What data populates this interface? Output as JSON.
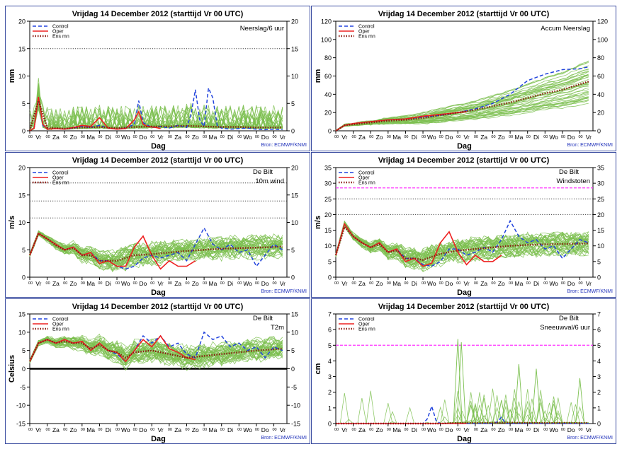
{
  "colors": {
    "ensemble": "#7cc050",
    "control": "#2244dd",
    "oper": "#ee2020",
    "ensmean": "#8b1a10",
    "threshold_dotted": "#444444",
    "threshold_magenta": "#ff33ff",
    "source_text": "#2233bb",
    "border": "#3a4ca0"
  },
  "common": {
    "day_labels": [
      "Vr",
      "Za",
      "Zo",
      "Ma",
      "Di",
      "Wo",
      "Do",
      "Vr",
      "Za",
      "Zo",
      "Ma",
      "Di",
      "Wo",
      "Do",
      "Vr"
    ],
    "xlabel": "Dag",
    "source": "Bron: ECMWF/KNMI",
    "legend": [
      "Control",
      "Oper",
      "Ens mn"
    ]
  },
  "chart_data": [
    {
      "id": "neerslag",
      "type": "line",
      "title": "Vrijdag  14 December 2012  (starttijd  Vr 00 UTC)",
      "station": "",
      "variable": "Neerslag/6 uur",
      "ylabel": "mm",
      "ylim": [
        0,
        20
      ],
      "yticks": [
        0,
        5,
        10,
        15,
        20
      ],
      "hlines": [
        {
          "y": 15,
          "style": "dotted"
        }
      ],
      "series": [
        {
          "name": "Control",
          "x": [
            0,
            0.25,
            0.5,
            0.75,
            1,
            1.5,
            2,
            2.5,
            3,
            3.5,
            4,
            4.5,
            5,
            5.5,
            6,
            6.25,
            6.5,
            7,
            7.5,
            8,
            8.5,
            9,
            9.25,
            9.5,
            9.75,
            10,
            10.25,
            10.5,
            10.75,
            11,
            11.5,
            12,
            12.5,
            13,
            13.5,
            14,
            14.5
          ],
          "values": [
            0,
            0.5,
            6,
            1,
            0.3,
            0.4,
            0.3,
            0.5,
            0.8,
            0.6,
            1,
            0.5,
            0.3,
            0.5,
            1.2,
            5.5,
            1.5,
            0.6,
            0.8,
            0.5,
            1,
            0.6,
            3,
            7.5,
            2,
            0.8,
            7.8,
            6,
            1,
            0.5,
            0.3,
            0.4,
            0.5,
            0.3,
            0.2,
            0.3,
            0.2
          ]
        },
        {
          "name": "Oper",
          "x": [
            0,
            0.25,
            0.5,
            0.75,
            1,
            1.5,
            2,
            2.5,
            3,
            3.5,
            4,
            4.5,
            5,
            5.5,
            6,
            6.25,
            6.5,
            6.75,
            7,
            7.25,
            7.5
          ],
          "values": [
            0,
            0.5,
            6.2,
            1.2,
            0.3,
            0.4,
            0.3,
            0.6,
            1,
            0.8,
            2.4,
            0.5,
            0.3,
            0.4,
            2,
            3.5,
            1.2,
            0.8,
            0.7,
            0.6,
            0.4
          ]
        },
        {
          "name": "Ens mn",
          "x": [
            0,
            0.5,
            1,
            2,
            3,
            4,
            5,
            6,
            7,
            8,
            9,
            10,
            11,
            12,
            13,
            14,
            14.5
          ],
          "values": [
            0,
            5.5,
            0.6,
            0.4,
            0.6,
            0.7,
            0.5,
            0.7,
            0.8,
            0.8,
            0.9,
            0.8,
            0.7,
            0.7,
            0.6,
            0.6,
            0.6
          ]
        }
      ]
    },
    {
      "id": "accum",
      "type": "line",
      "title": "Vrijdag  14 December 2012  (starttijd  Vr 00 UTC)",
      "station": "",
      "variable": "Accum Neerslag",
      "ylabel": "mm",
      "ylim": [
        0,
        120
      ],
      "yticks": [
        0,
        20,
        40,
        60,
        80,
        100,
        120
      ],
      "hlines": [],
      "series": [
        {
          "name": "Control",
          "x": [
            0,
            0.5,
            1,
            2,
            3,
            4,
            5,
            6,
            7,
            8,
            9,
            10,
            11,
            12,
            13,
            14,
            14.5
          ],
          "values": [
            0,
            6,
            8,
            10,
            12,
            13,
            15,
            17,
            20,
            24,
            30,
            40,
            55,
            62,
            67,
            68,
            70
          ]
        },
        {
          "name": "Oper",
          "x": [
            0,
            0.5,
            1,
            2,
            3,
            4,
            5,
            6,
            7,
            7.5
          ],
          "values": [
            0,
            6,
            8,
            10,
            12,
            13,
            16,
            18,
            20,
            21
          ]
        },
        {
          "name": "Ens mn",
          "x": [
            0,
            0.5,
            1,
            2,
            3,
            4,
            5,
            6,
            7,
            8,
            9,
            10,
            11,
            12,
            13,
            14,
            14.5
          ],
          "values": [
            0,
            6,
            7,
            9,
            11,
            12,
            14,
            17,
            20,
            23,
            27,
            31,
            36,
            41,
            45,
            51,
            54
          ]
        }
      ]
    },
    {
      "id": "wind",
      "type": "line",
      "title": "Vrijdag  14 December 2012  (starttijd  Vr 00 UTC)",
      "station": "De Bilt",
      "variable": "10m wind",
      "ylabel": "m/s",
      "ylim": [
        0,
        20
      ],
      "yticks": [
        0,
        5,
        10,
        15,
        20
      ],
      "hlines": [
        {
          "y": 10.8,
          "style": "dotted"
        },
        {
          "y": 13.9,
          "style": "dotted"
        },
        {
          "y": 17.2,
          "style": "dotted"
        }
      ],
      "series": [
        {
          "name": "Control",
          "x": [
            0,
            0.5,
            1,
            1.5,
            2,
            2.5,
            3,
            3.5,
            4,
            4.5,
            5,
            5.5,
            6,
            6.5,
            7,
            7.5,
            8,
            8.5,
            9,
            9.5,
            10,
            10.5,
            11,
            11.5,
            12,
            12.5,
            13,
            13.5,
            14,
            14.5
          ],
          "values": [
            4,
            8,
            7,
            6,
            5,
            5.5,
            4,
            4.5,
            3,
            3,
            2,
            1.5,
            2,
            3.5,
            4,
            3.5,
            4,
            4.5,
            3,
            6,
            9,
            6,
            5,
            6,
            4.5,
            5,
            2,
            4,
            6,
            5
          ]
        },
        {
          "name": "Oper",
          "x": [
            0,
            0.5,
            1,
            1.5,
            2,
            2.5,
            3,
            3.5,
            4,
            4.5,
            5,
            5.5,
            6,
            6.5,
            7,
            7.5,
            8,
            8.5,
            9,
            9.5
          ],
          "values": [
            4,
            8,
            7,
            6,
            5,
            5.5,
            4,
            4.5,
            2.5,
            3,
            2,
            2,
            5.5,
            7.5,
            4,
            1.5,
            3,
            2,
            2,
            3
          ]
        },
        {
          "name": "Ens mn",
          "x": [
            0,
            0.5,
            1,
            1.5,
            2,
            2.5,
            3,
            3.5,
            4,
            4.5,
            5,
            6,
            7,
            8,
            9,
            10,
            11,
            12,
            13,
            14,
            14.5
          ],
          "values": [
            4,
            8,
            7,
            5.8,
            5,
            5.3,
            4,
            4,
            3,
            3,
            3,
            4,
            4.2,
            4.5,
            4.8,
            5,
            5.2,
            5.3,
            5.4,
            5.5,
            5.6
          ]
        }
      ]
    },
    {
      "id": "windstoten",
      "type": "line",
      "title": "Vrijdag  14 December 2012  (starttijd  Vr 00 UTC)",
      "station": "De Bilt",
      "variable": "Windstoten",
      "ylabel": "m/s",
      "ylim": [
        0,
        35
      ],
      "yticks": [
        0,
        5,
        10,
        15,
        20,
        25,
        30,
        35
      ],
      "hlines": [
        {
          "y": 20,
          "style": "dotted"
        },
        {
          "y": 25,
          "style": "dotted"
        },
        {
          "y": 28.5,
          "style": "magenta"
        }
      ],
      "series": [
        {
          "name": "Control",
          "x": [
            0,
            0.5,
            1,
            1.5,
            2,
            2.5,
            3,
            3.5,
            4,
            4.5,
            5,
            5.5,
            6,
            6.5,
            7,
            7.5,
            8,
            8.5,
            9,
            9.5,
            10,
            10.5,
            11,
            11.5,
            12,
            12.5,
            13,
            13.5,
            14,
            14.5
          ],
          "values": [
            7,
            17,
            13,
            11,
            9.5,
            11,
            8,
            9,
            6,
            6,
            4,
            3.5,
            5,
            9,
            9,
            7,
            8,
            9.5,
            8,
            12,
            18,
            13,
            11,
            12,
            9,
            10,
            6,
            9,
            12,
            11
          ]
        },
        {
          "name": "Oper",
          "x": [
            0,
            0.5,
            1,
            1.5,
            2,
            2.5,
            3,
            3.5,
            4,
            4.5,
            5,
            5.5,
            6,
            6.5,
            7,
            7.5,
            8,
            8.5,
            9,
            9.5
          ],
          "values": [
            7,
            17,
            13,
            11,
            9.5,
            11,
            8,
            9,
            5,
            6,
            3.5,
            4.5,
            11,
            14.5,
            8,
            4,
            7,
            5,
            5,
            7
          ]
        },
        {
          "name": "Ens mn",
          "x": [
            0,
            0.5,
            1,
            1.5,
            2,
            2.5,
            3,
            3.5,
            4,
            4.5,
            5,
            6,
            7,
            8,
            9,
            10,
            11,
            12,
            13,
            14,
            14.5
          ],
          "values": [
            7,
            16,
            13,
            11,
            9.5,
            10.5,
            8,
            8.5,
            6,
            6,
            5.5,
            7.5,
            8.5,
            9,
            9.5,
            10,
            10.3,
            10.5,
            10.6,
            10.7,
            10.8
          ]
        }
      ]
    },
    {
      "id": "t2m",
      "type": "line",
      "title": "Vrijdag  14 December 2012  (starttijd  Vr 00 UTC)",
      "station": "De Bilt",
      "variable": "T2m",
      "ylabel": "Celsius",
      "ylim": [
        -15,
        15
      ],
      "yticks": [
        -15,
        -10,
        -5,
        0,
        5,
        10,
        15
      ],
      "hlines": [
        {
          "y": 0,
          "style": "solid"
        }
      ],
      "series": [
        {
          "name": "Control",
          "x": [
            0,
            0.5,
            1,
            1.5,
            2,
            2.5,
            3,
            3.5,
            4,
            4.5,
            5,
            5.5,
            6,
            6.5,
            7,
            7.5,
            8,
            8.5,
            9,
            9.5,
            10,
            10.5,
            11,
            11.5,
            12,
            12.5,
            13,
            13.5,
            14,
            14.5
          ],
          "values": [
            2,
            7,
            8,
            7,
            8,
            7,
            7.5,
            5,
            7,
            5,
            4,
            2,
            5,
            9,
            7,
            9,
            6,
            7,
            4,
            3,
            10,
            8,
            9,
            6,
            7,
            5,
            6,
            3,
            6,
            5
          ]
        },
        {
          "name": "Oper",
          "x": [
            0,
            0.5,
            1,
            1.5,
            2,
            2.5,
            3,
            3.5,
            4,
            4.5,
            5,
            5.5,
            6,
            6.5,
            7,
            7.5,
            8,
            8.5,
            9,
            9.5
          ],
          "values": [
            2,
            7,
            8,
            7,
            8,
            7,
            7.5,
            5,
            7,
            5,
            4.5,
            2,
            5,
            8,
            6,
            9,
            5.5,
            4.5,
            3,
            2.5
          ]
        },
        {
          "name": "Ens mn",
          "x": [
            0,
            0.5,
            1,
            1.5,
            2,
            2.5,
            3,
            3.5,
            4,
            4.5,
            5,
            5.5,
            6,
            7,
            8,
            9,
            10,
            11,
            12,
            13,
            14,
            14.5
          ],
          "values": [
            2,
            7,
            8,
            7,
            7.5,
            7,
            7,
            5.5,
            6.5,
            5,
            4.5,
            3,
            4.5,
            5,
            4,
            3,
            3.5,
            4,
            4.5,
            5,
            5.3,
            5.5
          ]
        }
      ]
    },
    {
      "id": "sneeuw",
      "type": "line",
      "title": "Vrijdag  14 December 2012  (starttijd  Vr 00 UTC)",
      "station": "De Bilt",
      "variable": "Sneeuwval/6 uur",
      "ylabel": "cm",
      "ylim": [
        0,
        7
      ],
      "yticks": [
        0,
        1,
        2,
        3,
        4,
        5,
        6,
        7
      ],
      "hlines": [
        {
          "y": 5,
          "style": "magenta"
        }
      ],
      "series": [
        {
          "name": "Control",
          "x": [
            0,
            4,
            5,
            5.25,
            5.5,
            5.75,
            6,
            9,
            9.25,
            9.5,
            9.75,
            14.5
          ],
          "values": [
            0,
            0,
            0,
            0.3,
            1.1,
            0.2,
            0,
            0,
            0.1,
            0.4,
            0,
            0
          ]
        },
        {
          "name": "Oper",
          "x": [
            0,
            7.5
          ],
          "values": [
            0,
            0
          ]
        },
        {
          "name": "Ens mn",
          "x": [
            0,
            6,
            7,
            8,
            9,
            10,
            11,
            12,
            13,
            14,
            14.5
          ],
          "values": [
            0,
            0,
            0.05,
            0.04,
            0.05,
            0.06,
            0.05,
            0.04,
            0.05,
            0.04,
            0.04
          ]
        }
      ]
    }
  ]
}
